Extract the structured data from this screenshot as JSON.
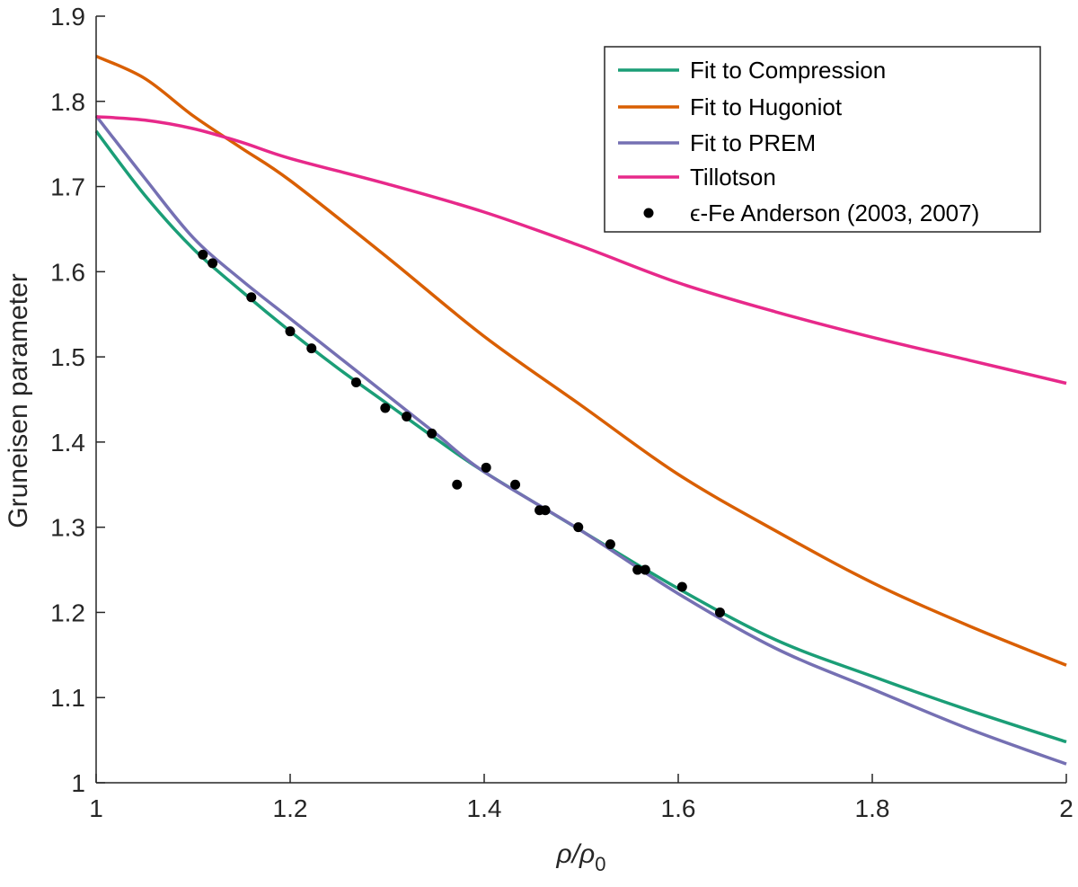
{
  "chart_data": {
    "type": "line",
    "title": "",
    "xlabel": "ρ/ρ",
    "xlabel_sub": "0",
    "ylabel": "Gruneisen parameter",
    "xlim": [
      1,
      2
    ],
    "ylim": [
      1,
      1.9
    ],
    "xticks": [
      1,
      1.2,
      1.4,
      1.6,
      1.8,
      2
    ],
    "xtick_labels": [
      "1",
      "1.2",
      "1.4",
      "1.6",
      "1.8",
      "2"
    ],
    "yticks": [
      1,
      1.1,
      1.2,
      1.3,
      1.4,
      1.5,
      1.6,
      1.7,
      1.8,
      1.9
    ],
    "ytick_labels": [
      "1",
      "1.1",
      "1.2",
      "1.3",
      "1.4",
      "1.5",
      "1.6",
      "1.7",
      "1.8",
      "1.9"
    ],
    "grid": false,
    "legend_position": "top-right",
    "series": [
      {
        "name": "Fit to Compression",
        "kind": "line",
        "color": "#1b9e77",
        "x": [
          1.0,
          1.05,
          1.1,
          1.15,
          1.2,
          1.25,
          1.3,
          1.35,
          1.4,
          1.5,
          1.6,
          1.7,
          1.8,
          1.9,
          2.0
        ],
        "y": [
          1.765,
          1.69,
          1.627,
          1.577,
          1.53,
          1.486,
          1.445,
          1.404,
          1.365,
          1.296,
          1.228,
          1.168,
          1.125,
          1.085,
          1.048
        ]
      },
      {
        "name": "Fit to Hugoniot",
        "kind": "line",
        "color": "#d95f02",
        "x": [
          1.0,
          1.05,
          1.1,
          1.15,
          1.2,
          1.3,
          1.4,
          1.5,
          1.6,
          1.7,
          1.8,
          1.9,
          2.0
        ],
        "y": [
          1.853,
          1.827,
          1.783,
          1.745,
          1.707,
          1.617,
          1.524,
          1.443,
          1.362,
          1.296,
          1.235,
          1.184,
          1.138
        ]
      },
      {
        "name": "Fit to PREM",
        "kind": "line",
        "color": "#7570b3",
        "x": [
          1.0,
          1.05,
          1.1,
          1.15,
          1.2,
          1.25,
          1.3,
          1.35,
          1.4,
          1.5,
          1.6,
          1.7,
          1.8,
          1.9,
          2.0
        ],
        "y": [
          1.783,
          1.71,
          1.64,
          1.59,
          1.545,
          1.5,
          1.455,
          1.41,
          1.365,
          1.296,
          1.222,
          1.158,
          1.11,
          1.063,
          1.022
        ]
      },
      {
        "name": "Tillotson",
        "kind": "line",
        "color": "#e7298a",
        "x": [
          1.0,
          1.05,
          1.1,
          1.15,
          1.2,
          1.3,
          1.4,
          1.5,
          1.6,
          1.7,
          1.8,
          1.9,
          2.0
        ],
        "y": [
          1.782,
          1.778,
          1.768,
          1.752,
          1.733,
          1.703,
          1.67,
          1.63,
          1.587,
          1.553,
          1.523,
          1.496,
          1.469
        ]
      },
      {
        "name": "ϵ-Fe Anderson (2003, 2007)",
        "kind": "scatter",
        "color": "#000000",
        "x": [
          1.11,
          1.12,
          1.16,
          1.2,
          1.222,
          1.268,
          1.298,
          1.32,
          1.346,
          1.372,
          1.402,
          1.432,
          1.457,
          1.463,
          1.497,
          1.53,
          1.558,
          1.566,
          1.604,
          1.643
        ],
        "y": [
          1.62,
          1.61,
          1.57,
          1.53,
          1.51,
          1.47,
          1.44,
          1.43,
          1.41,
          1.35,
          1.37,
          1.35,
          1.32,
          1.32,
          1.3,
          1.28,
          1.25,
          1.25,
          1.23,
          1.2
        ]
      }
    ]
  }
}
